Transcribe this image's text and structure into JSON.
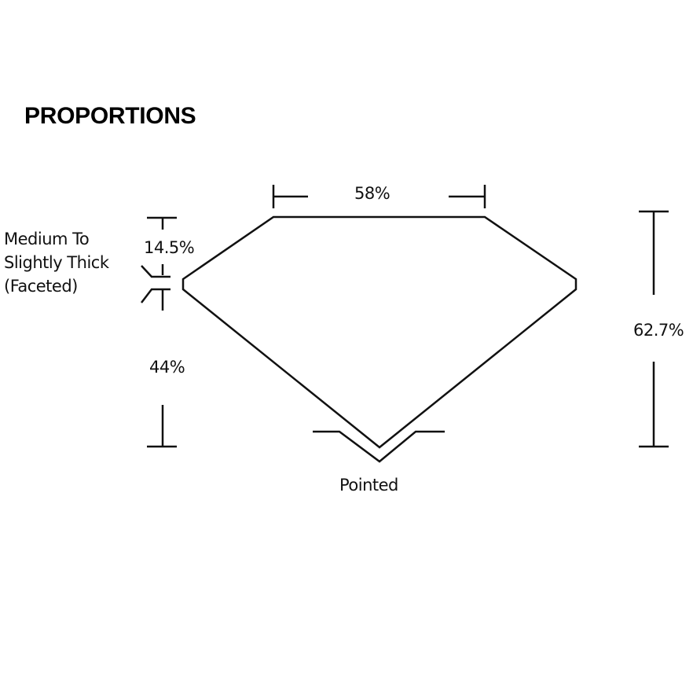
{
  "title": "PROPORTIONS",
  "labels": {
    "table": "58%",
    "crown": "14.5%",
    "pavilion": "44%",
    "depth": "62.7%",
    "girdle_line1": "Medium To",
    "girdle_line2": "Slightly Thick",
    "girdle_line3": "(Faceted)",
    "culet": "Pointed"
  }
}
